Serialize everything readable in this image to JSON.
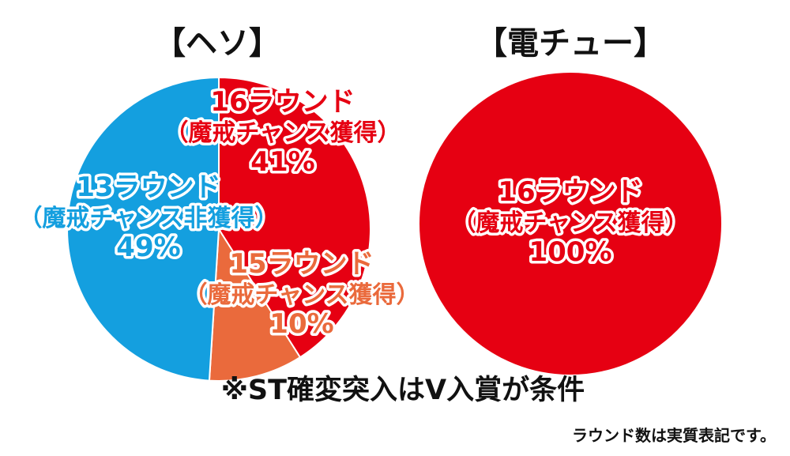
{
  "chart_data": [
    {
      "type": "pie",
      "title": "【ヘソ】",
      "colors": [
        "#e60012",
        "#ea6a3c",
        "#149fdf"
      ],
      "slices": [
        {
          "line1": "16ラウンド",
          "line2": "（魔戒チャンス獲得）",
          "percent_label": "41%",
          "value": 41,
          "color": "#e60012"
        },
        {
          "line1": "15ラウンド",
          "line2": "（魔戒チャンス獲得）",
          "percent_label": "10%",
          "value": 10,
          "color": "#ea6a3c"
        },
        {
          "line1": "13ラウンド",
          "line2": "（魔戒チャンス非獲得）",
          "percent_label": "49%",
          "value": 49,
          "color": "#149fdf"
        }
      ]
    },
    {
      "type": "pie",
      "title": "【電チュー】",
      "colors": [
        "#e60012"
      ],
      "slices": [
        {
          "line1": "16ラウンド",
          "line2": "（魔戒チャンス獲得）",
          "percent_label": "100%",
          "value": 100,
          "color": "#e60012"
        }
      ]
    }
  ],
  "footer": {
    "note": "※ST確変突入はV入賞が条件",
    "sub": "ラウンド数は実質表記です。"
  }
}
